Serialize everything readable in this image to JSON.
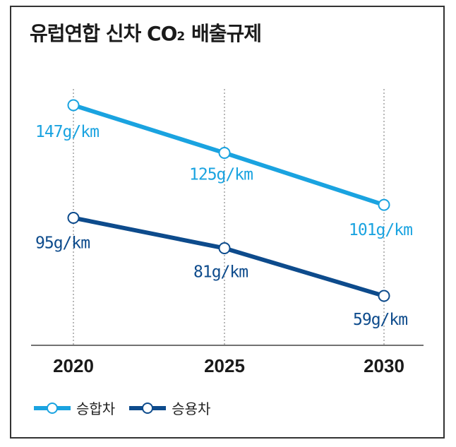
{
  "title_main": "유럽연합 신차 CO",
  "title_sub": "2",
  "title_rest": " 배출규제",
  "chart_data": {
    "type": "line",
    "title": "유럽연합 신차 CO2 배출규제",
    "xlabel": "",
    "ylabel": "",
    "categories": [
      "2020",
      "2025",
      "2030"
    ],
    "ylim": [
      45,
      155
    ],
    "grid": "vertical dotted",
    "legend_position": "bottom-left",
    "series": [
      {
        "name": "승합차",
        "color": "#1aa3e0",
        "values": [
          147,
          125,
          101
        ],
        "labels": [
          "147g/km",
          "125g/km",
          "101g/km"
        ]
      },
      {
        "name": "승용차",
        "color": "#0d4b8c",
        "values": [
          95,
          81,
          59
        ],
        "labels": [
          "95g/km",
          "81g/km",
          "59g/km"
        ]
      }
    ]
  }
}
